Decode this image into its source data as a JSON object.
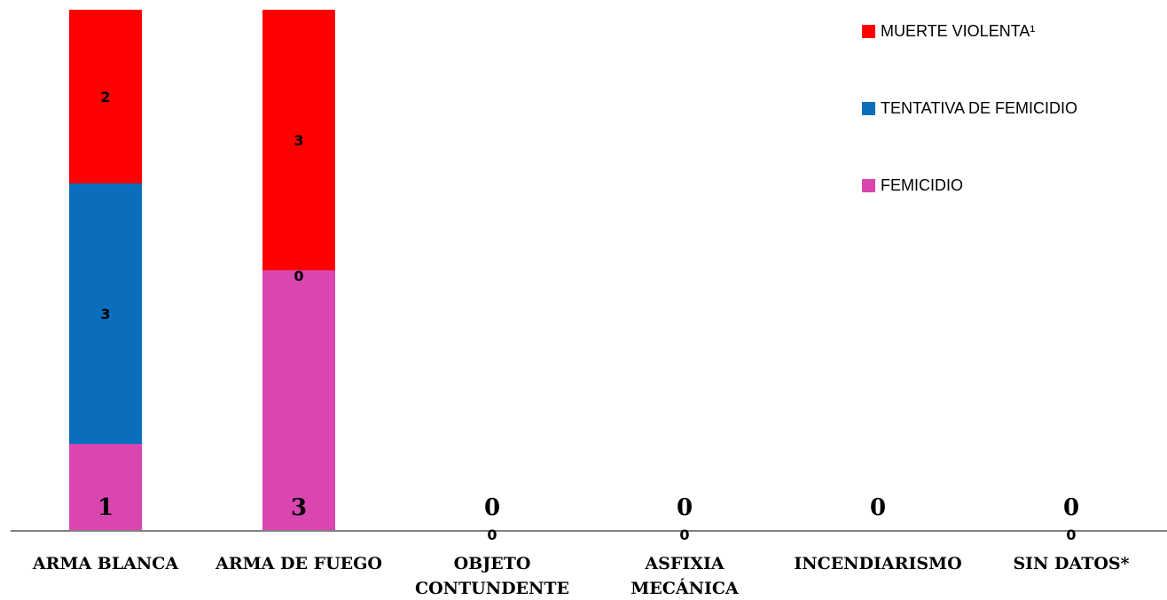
{
  "chart_data": {
    "type": "bar",
    "stacked": true,
    "categories": [
      {
        "line1": "ARMA BLANCA",
        "line2": ""
      },
      {
        "line1": "ARMA DE FUEGO",
        "line2": ""
      },
      {
        "line1": "OBJETO",
        "line2": "CONTUNDENTE"
      },
      {
        "line1": "ASFIXIA",
        "line2": "MECÁNICA"
      },
      {
        "line1": "INCENDIARISMO",
        "line2": ""
      },
      {
        "line1": "SIN DATOS*",
        "line2": ""
      }
    ],
    "series": [
      {
        "name": "FEMICIDIO",
        "color": "#d946b0",
        "values": [
          1,
          3,
          0,
          0,
          0,
          0
        ]
      },
      {
        "name": "TENTATIVA DE FEMICIDIO",
        "color": "#0a6ebd",
        "values": [
          3,
          0,
          0,
          0,
          null,
          0
        ]
      },
      {
        "name": "MUERTE VIOLENTA¹",
        "color": "#ff0000",
        "values": [
          2,
          3,
          null,
          null,
          null,
          null
        ]
      }
    ],
    "ylim": [
      0,
      6
    ],
    "legend_position": "top-right",
    "grid": false
  }
}
